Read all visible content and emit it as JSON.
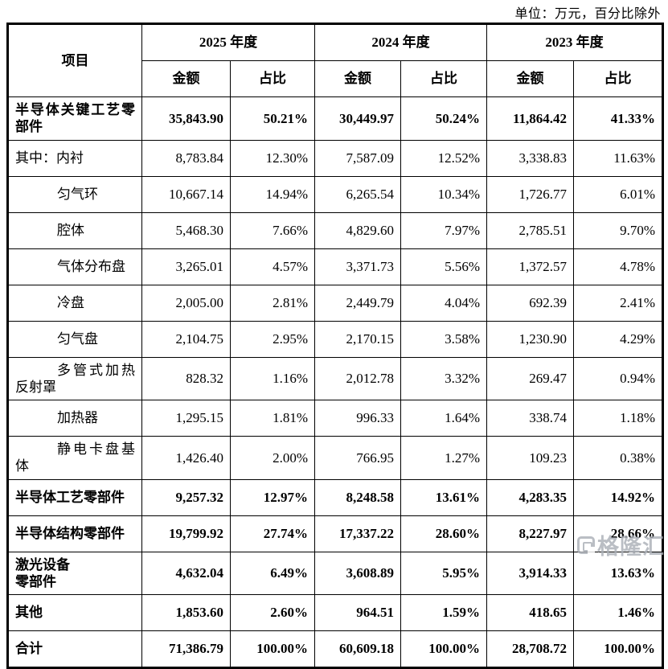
{
  "unit_note": "单位：万元，百分比除外",
  "watermark_text": "格隆汇",
  "colors": {
    "text": "#000000",
    "border": "#000000",
    "watermark_gray": "#a9aeb6",
    "background": "#ffffff"
  },
  "table": {
    "item_header": "项目",
    "year_groups": [
      {
        "label": "2025 年度"
      },
      {
        "label": "2024 年度"
      },
      {
        "label": "2023 年度"
      }
    ],
    "sub_headers": [
      "金额",
      "占比"
    ],
    "rows": [
      {
        "label": "半导体关键工艺零部件",
        "bold": true,
        "indent": false,
        "values": [
          "35,843.90",
          "50.21%",
          "30,449.97",
          "50.24%",
          "11,864.42",
          "41.33%"
        ]
      },
      {
        "label": "其中：内衬",
        "bold": false,
        "indent": false,
        "values": [
          "8,783.84",
          "12.30%",
          "7,587.09",
          "12.52%",
          "3,338.83",
          "11.63%"
        ]
      },
      {
        "label": "匀气环",
        "bold": false,
        "indent": true,
        "values": [
          "10,667.14",
          "14.94%",
          "6,265.54",
          "10.34%",
          "1,726.77",
          "6.01%"
        ]
      },
      {
        "label": "腔体",
        "bold": false,
        "indent": true,
        "values": [
          "5,468.30",
          "7.66%",
          "4,829.60",
          "7.97%",
          "2,785.51",
          "9.70%"
        ]
      },
      {
        "label": "气体分布盘",
        "bold": false,
        "indent": true,
        "values": [
          "3,265.01",
          "4.57%",
          "3,371.73",
          "5.56%",
          "1,372.57",
          "4.78%"
        ]
      },
      {
        "label": "冷盘",
        "bold": false,
        "indent": true,
        "values": [
          "2,005.00",
          "2.81%",
          "2,449.79",
          "4.04%",
          "692.39",
          "2.41%"
        ]
      },
      {
        "label": "匀气盘",
        "bold": false,
        "indent": true,
        "values": [
          "2,104.75",
          "2.95%",
          "2,170.15",
          "3.58%",
          "1,230.90",
          "4.29%"
        ]
      },
      {
        "label": "多管式加热反射罩",
        "bold": false,
        "indent": true,
        "values": [
          "828.32",
          "1.16%",
          "2,012.78",
          "3.32%",
          "269.47",
          "0.94%"
        ]
      },
      {
        "label": "加热器",
        "bold": false,
        "indent": true,
        "values": [
          "1,295.15",
          "1.81%",
          "996.33",
          "1.64%",
          "338.74",
          "1.18%"
        ]
      },
      {
        "label": "静电卡盘基体",
        "bold": false,
        "indent": true,
        "values": [
          "1,426.40",
          "2.00%",
          "766.95",
          "1.27%",
          "109.23",
          "0.38%"
        ]
      },
      {
        "label": "半导体工艺零部件",
        "bold": true,
        "indent": false,
        "values": [
          "9,257.32",
          "12.97%",
          "8,248.58",
          "13.61%",
          "4,283.35",
          "14.92%"
        ]
      },
      {
        "label": "半导体结构零部件",
        "bold": true,
        "indent": false,
        "values": [
          "19,799.92",
          "27.74%",
          "17,337.22",
          "28.60%",
          "8,227.97",
          "28.66%"
        ]
      },
      {
        "label": "激光设备\n零部件",
        "bold": true,
        "indent": false,
        "prewrap": true,
        "values": [
          "4,632.04",
          "6.49%",
          "3,608.89",
          "5.95%",
          "3,914.33",
          "13.63%"
        ]
      },
      {
        "label": "其他",
        "bold": true,
        "indent": false,
        "values": [
          "1,853.60",
          "2.60%",
          "964.51",
          "1.59%",
          "418.65",
          "1.46%"
        ]
      },
      {
        "label": "合计",
        "bold": true,
        "indent": false,
        "values": [
          "71,386.79",
          "100.00%",
          "60,609.18",
          "100.00%",
          "28,708.72",
          "100.00%"
        ]
      }
    ]
  }
}
